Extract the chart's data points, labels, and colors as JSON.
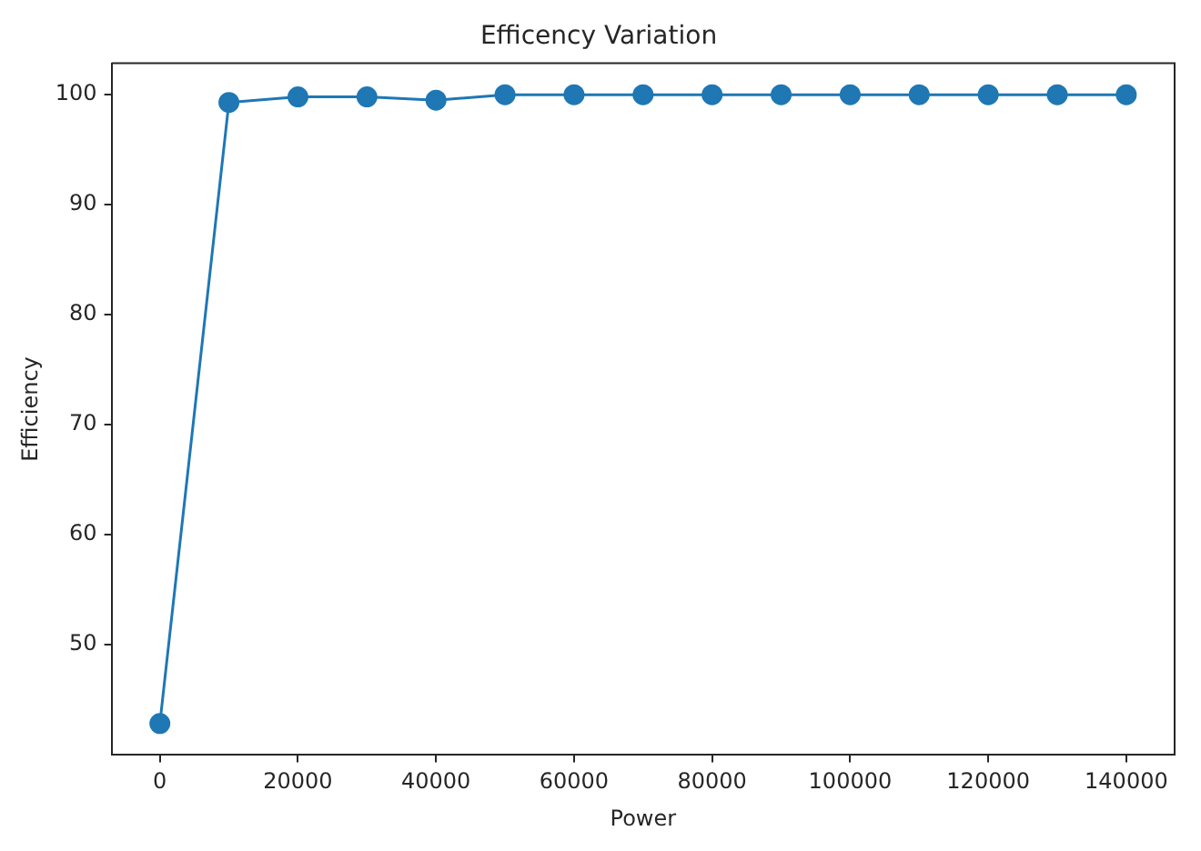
{
  "chart_data": {
    "type": "line",
    "title": "Efficency Variation",
    "xlabel": "Power",
    "ylabel": "Efficiency",
    "x": [
      0,
      10000,
      20000,
      30000,
      40000,
      50000,
      60000,
      70000,
      80000,
      90000,
      100000,
      110000,
      120000,
      130000,
      140000
    ],
    "series": [
      {
        "color": "#1f77b4",
        "values": [
          42.8,
          99.3,
          99.8,
          99.8,
          99.5,
          100,
          100,
          100,
          100,
          100,
          100,
          100,
          100,
          100,
          100
        ]
      }
    ],
    "xlim": [
      -7000,
      147000
    ],
    "xticks": [
      0,
      20000,
      40000,
      60000,
      80000,
      100000,
      120000,
      140000
    ],
    "ylim": [
      39.94,
      102.86
    ],
    "yticks": [
      50,
      60,
      70,
      80,
      90,
      100
    ],
    "marker": "circle",
    "line_style": "solid",
    "grid": false,
    "legend": false
  }
}
